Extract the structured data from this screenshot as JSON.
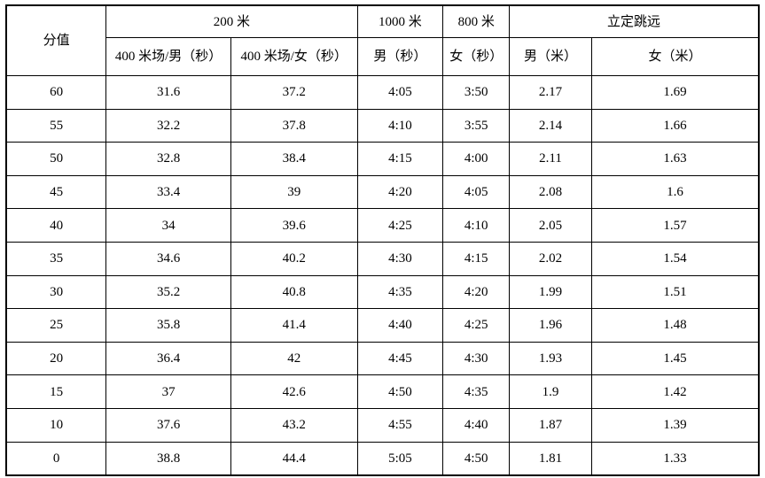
{
  "table": {
    "header": {
      "score": "分值",
      "group_200m": "200 米",
      "col_400_male": "400 米场/男（秒）",
      "col_400_female": "400 米场/女（秒）",
      "group_1000m": "1000 米",
      "col_1000_male": "男（秒）",
      "group_800m": "800 米",
      "col_800_female": "女（秒）",
      "group_jump": "立定跳远",
      "col_jump_male": "男（米）",
      "col_jump_female": "女（米）"
    },
    "rows": [
      [
        "60",
        "31.6",
        "37.2",
        "4:05",
        "3:50",
        "2.17",
        "1.69"
      ],
      [
        "55",
        "32.2",
        "37.8",
        "4:10",
        "3:55",
        "2.14",
        "1.66"
      ],
      [
        "50",
        "32.8",
        "38.4",
        "4:15",
        "4:00",
        "2.11",
        "1.63"
      ],
      [
        "45",
        "33.4",
        "39",
        "4:20",
        "4:05",
        "2.08",
        "1.6"
      ],
      [
        "40",
        "34",
        "39.6",
        "4:25",
        "4:10",
        "2.05",
        "1.57"
      ],
      [
        "35",
        "34.6",
        "40.2",
        "4:30",
        "4:15",
        "2.02",
        "1.54"
      ],
      [
        "30",
        "35.2",
        "40.8",
        "4:35",
        "4:20",
        "1.99",
        "1.51"
      ],
      [
        "25",
        "35.8",
        "41.4",
        "4:40",
        "4:25",
        "1.96",
        "1.48"
      ],
      [
        "20",
        "36.4",
        "42",
        "4:45",
        "4:30",
        "1.93",
        "1.45"
      ],
      [
        "15",
        "37",
        "42.6",
        "4:50",
        "4:35",
        "1.9",
        "1.42"
      ],
      [
        "10",
        "37.6",
        "43.2",
        "4:55",
        "4:40",
        "1.87",
        "1.39"
      ],
      [
        "0",
        "38.8",
        "44.4",
        "5:05",
        "4:50",
        "1.81",
        "1.33"
      ]
    ],
    "colors": {
      "border": "#000000",
      "text": "#000000",
      "background": "#ffffff"
    }
  }
}
